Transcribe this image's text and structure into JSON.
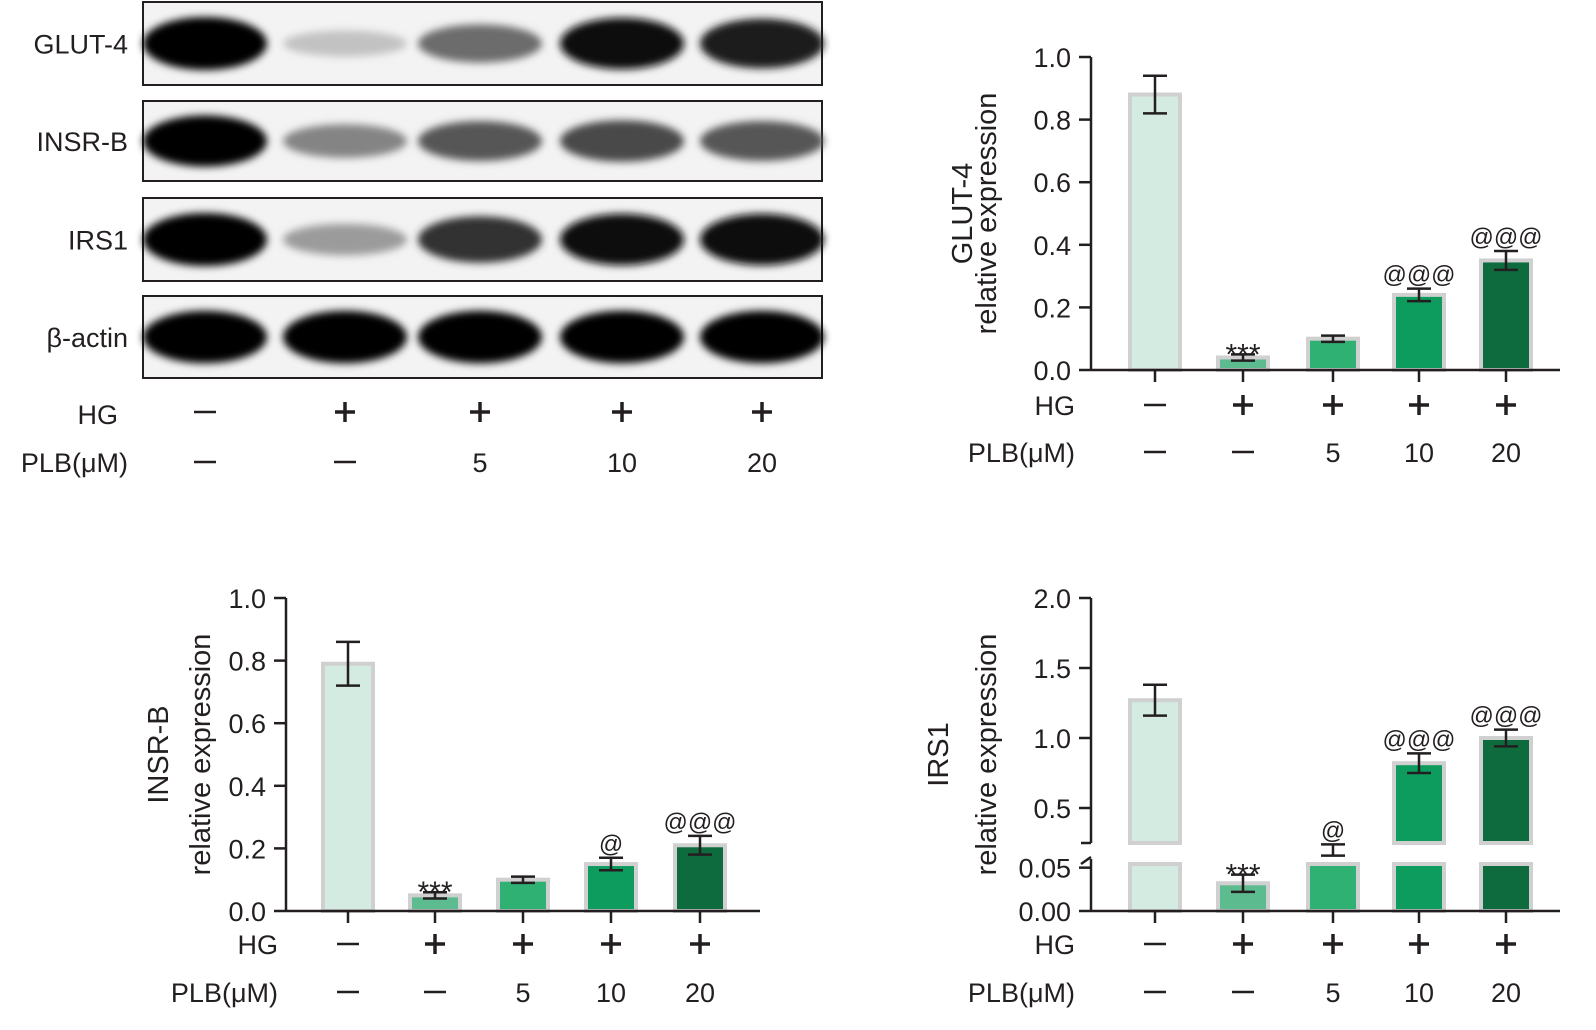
{
  "blot": {
    "rows": [
      {
        "label": "GLUT-4",
        "intensity": [
          1.0,
          0.18,
          0.55,
          0.95,
          0.9
        ]
      },
      {
        "label": "INSR-B",
        "intensity": [
          1.0,
          0.45,
          0.65,
          0.7,
          0.65
        ]
      },
      {
        "label": "IRS1",
        "intensity": [
          1.0,
          0.35,
          0.8,
          0.95,
          0.95
        ]
      },
      {
        "label": "β-actin",
        "intensity": [
          1.0,
          1.0,
          1.0,
          1.0,
          1.0
        ]
      }
    ],
    "conditions": {
      "hg_label": "HG",
      "plb_label": "PLB(μM)",
      "hg": [
        "—",
        "+",
        "+",
        "+",
        "+"
      ],
      "plb": [
        "—",
        "—",
        "5",
        "10",
        "20"
      ]
    }
  },
  "colors": {
    "bar_colors": [
      "#d4ebe1",
      "#5dbc8f",
      "#2fb173",
      "#0e9b5e",
      "#0d6b3e"
    ],
    "bar_outline": "#d0d0d0",
    "ink": "#231f20"
  },
  "chart_data": [
    {
      "type": "bar",
      "ylabel": [
        "GLUT-4",
        "relative expression"
      ],
      "ylim": [
        0,
        1.0
      ],
      "yticks": [
        "0.0",
        "0.2",
        "0.4",
        "0.6",
        "0.8",
        "1.0"
      ],
      "categories_hg": [
        "—",
        "+",
        "+",
        "+",
        "+"
      ],
      "categories_plb": [
        "—",
        "—",
        "5",
        "10",
        "20"
      ],
      "xlabel_hg": "HG",
      "xlabel_plb": "PLB(μM)",
      "values": [
        0.88,
        0.04,
        0.1,
        0.24,
        0.35
      ],
      "errors": [
        0.06,
        0.01,
        0.01,
        0.02,
        0.03
      ],
      "annotations": [
        "",
        "***",
        "",
        "@@@",
        "@@@"
      ]
    },
    {
      "type": "bar",
      "ylabel": [
        "INSR-B",
        "relative expression"
      ],
      "ylim": [
        0,
        1.0
      ],
      "yticks": [
        "0.0",
        "0.2",
        "0.4",
        "0.6",
        "0.8",
        "1.0"
      ],
      "categories_hg": [
        "—",
        "+",
        "+",
        "+",
        "+"
      ],
      "categories_plb": [
        "—",
        "—",
        "5",
        "10",
        "20"
      ],
      "xlabel_hg": "HG",
      "xlabel_plb": "PLB(μM)",
      "values": [
        0.79,
        0.05,
        0.1,
        0.15,
        0.21
      ],
      "errors": [
        0.07,
        0.01,
        0.01,
        0.02,
        0.03
      ],
      "annotations": [
        "",
        "***",
        "",
        "@",
        "@@@"
      ]
    },
    {
      "type": "bar",
      "ylabel": [
        "IRS1",
        "relative expression"
      ],
      "broken_axis": true,
      "ylim": [
        0,
        2.0
      ],
      "yticks": [
        "0.00",
        "0.05",
        "0.5",
        "1.0",
        "1.5",
        "2.0"
      ],
      "categories_hg": [
        "—",
        "+",
        "+",
        "+",
        "+"
      ],
      "categories_plb": [
        "—",
        "—",
        "5",
        "10",
        "20"
      ],
      "xlabel_hg": "HG",
      "xlabel_plb": "PLB(μM)",
      "values": [
        1.27,
        0.032,
        0.2,
        0.82,
        1.0
      ],
      "errors": [
        0.11,
        0.01,
        0.04,
        0.07,
        0.06
      ],
      "annotations": [
        "",
        "***",
        "@",
        "@@@",
        "@@@"
      ]
    }
  ]
}
